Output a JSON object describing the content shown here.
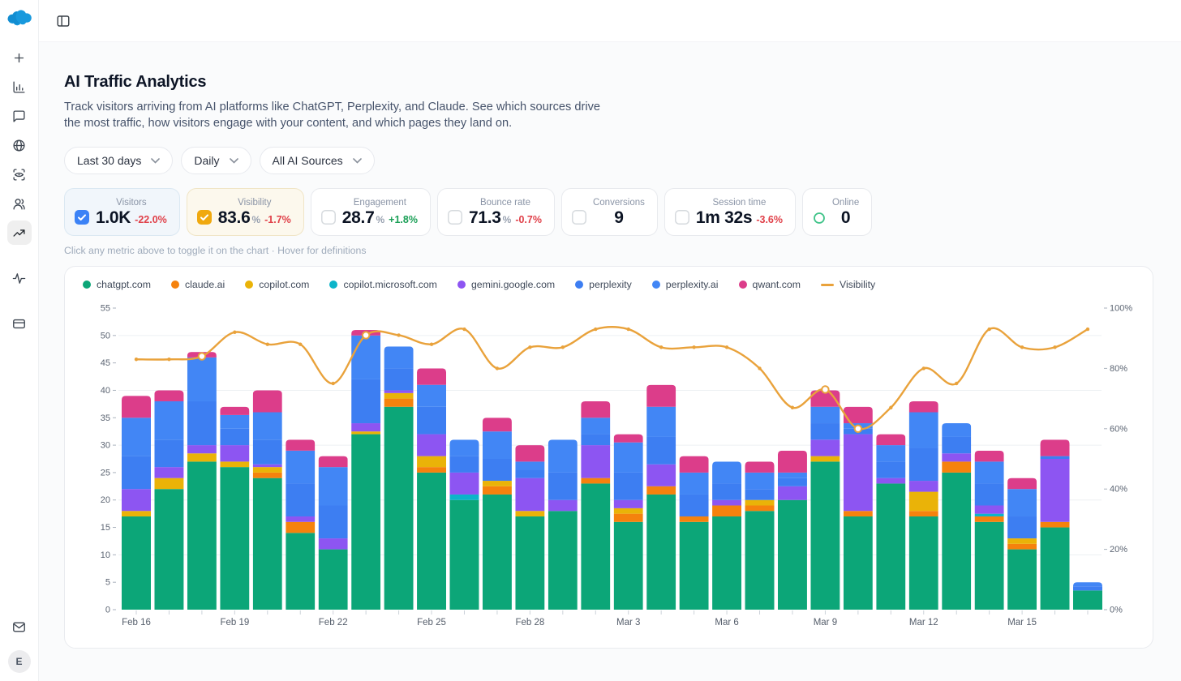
{
  "sidebar": {
    "active_item": "trending-up",
    "items": [
      {
        "icon": "plus"
      },
      {
        "icon": "bar-chart"
      },
      {
        "icon": "chat-bubble"
      },
      {
        "icon": "globe"
      },
      {
        "icon": "scan-eye"
      },
      {
        "icon": "users"
      },
      {
        "icon": "trending-up"
      },
      {
        "icon": "activity"
      },
      {
        "icon": "credit-card"
      },
      {
        "icon": "mail"
      }
    ],
    "avatar_letter": "E"
  },
  "page": {
    "title": "AI Traffic Analytics",
    "description": "Track visitors arriving from AI platforms like ChatGPT, Perplexity, and Claude. See which sources drive the most traffic, how visitors engage with your content, and which pages they land on.",
    "filters": [
      {
        "label": "Last 30 days"
      },
      {
        "label": "Daily"
      },
      {
        "label": "All AI Sources"
      }
    ],
    "metrics": [
      {
        "label": "Visitors",
        "value": "1.0K",
        "delta": "-22.0%",
        "state": "checked-blue"
      },
      {
        "label": "Visibility",
        "value": "83.6",
        "suffix": "%",
        "delta": "-1.7%",
        "state": "checked-amber"
      },
      {
        "label": "Engagement",
        "value": "28.7",
        "suffix": "%",
        "delta": "+1.8%",
        "state": "unchecked"
      },
      {
        "label": "Bounce rate",
        "value": "71.3",
        "suffix": "%",
        "delta": "-0.7%",
        "state": "unchecked"
      },
      {
        "label": "Conversions",
        "value": "9",
        "state": "unchecked"
      },
      {
        "label": "Session time",
        "value": "1m 32s",
        "delta": "-3.6%",
        "state": "unchecked"
      },
      {
        "label": "Online",
        "value": "0",
        "state": "online"
      }
    ],
    "hint": "Click any metric above to toggle it on the chart · Hover for definitions"
  },
  "colors": {
    "checkbox_blue": "#3b82f6",
    "checkbox_amber": "#f0a90f",
    "negative": "#e04049",
    "positive": "#1a9f56",
    "online_ring": "#3fc388"
  },
  "chart_data": {
    "type": "stacked-bar+line",
    "categories": [
      "Feb 16",
      "Feb 17",
      "Feb 18",
      "Feb 19",
      "Feb 20",
      "Feb 21",
      "Feb 22",
      "Feb 23",
      "Feb 24",
      "Feb 25",
      "Feb 26",
      "Feb 27",
      "Feb 28",
      "Mar 1",
      "Mar 2",
      "Mar 3",
      "Mar 4",
      "Mar 5",
      "Mar 6",
      "Mar 7",
      "Mar 8",
      "Mar 9",
      "Mar 10",
      "Mar 11",
      "Mar 12",
      "Mar 13",
      "Mar 14",
      "Mar 15",
      "Mar 16",
      "Mar 17"
    ],
    "x_label_every": 3,
    "series": [
      {
        "name": "chatgpt.com",
        "color": "#0ca678",
        "values": [
          17,
          22,
          27,
          26,
          24,
          14,
          11,
          32,
          37,
          25,
          20,
          21,
          17,
          18,
          23,
          16,
          21,
          16,
          17,
          18,
          20,
          27,
          17,
          23,
          17,
          25,
          16,
          11,
          15,
          3.5
        ]
      },
      {
        "name": "claude.ai",
        "color": "#f5820d",
        "values": [
          0,
          0,
          0,
          0,
          1,
          2,
          0,
          0,
          1.5,
          1,
          0,
          1.5,
          0,
          0,
          1,
          1.5,
          1.5,
          1,
          2,
          1,
          0,
          0,
          1,
          0,
          1,
          2,
          1,
          1,
          1,
          0
        ]
      },
      {
        "name": "copilot.com",
        "color": "#eab308",
        "values": [
          1,
          2,
          1.5,
          1,
          1,
          0,
          0,
          0.5,
          1,
          2,
          0,
          1,
          1,
          0,
          0,
          1,
          0,
          0,
          0,
          1,
          0,
          1,
          0,
          0,
          3.5,
          0,
          0,
          1,
          0,
          0
        ]
      },
      {
        "name": "copilot.microsoft.com",
        "color": "#0cb4c9",
        "values": [
          0,
          0,
          0,
          0,
          0,
          0,
          0,
          0,
          0,
          0,
          1,
          0,
          0,
          0,
          0,
          0,
          0,
          0,
          0,
          0,
          0,
          0,
          0,
          0,
          0,
          0,
          0.5,
          0,
          0,
          0
        ]
      },
      {
        "name": "gemini.google.com",
        "color": "#8d55f2",
        "values": [
          4,
          2,
          1.5,
          3,
          0.5,
          1,
          2,
          1.5,
          0.5,
          4,
          4,
          0,
          6,
          2,
          6,
          1.5,
          4,
          0,
          1,
          0,
          2.5,
          3,
          14,
          1,
          2,
          1.5,
          1.5,
          0,
          11.5,
          0
        ]
      },
      {
        "name": "perplexity",
        "color": "#3d7ef2",
        "values": [
          6,
          5,
          8,
          3,
          4.5,
          6,
          6,
          8,
          4,
          5,
          3,
          4,
          1.5,
          5,
          2,
          5,
          5,
          4,
          3,
          2,
          1.5,
          3,
          1,
          3,
          6,
          3,
          4,
          4,
          0.5,
          0.75
        ]
      },
      {
        "name": "perplexity.ai",
        "color": "#4286f5",
        "values": [
          7,
          7,
          8,
          2.5,
          5,
          6,
          7,
          8,
          4,
          4,
          3,
          5,
          1.5,
          6,
          3,
          5.5,
          5.5,
          4,
          4,
          3,
          1,
          3,
          1,
          3,
          6.5,
          2.5,
          4,
          5,
          0,
          0.75
        ]
      },
      {
        "name": "qwant.com",
        "color": "#dc3d8a",
        "values": [
          4,
          2,
          1,
          1.5,
          4,
          2,
          2,
          1,
          0,
          3,
          0,
          2.5,
          3,
          0,
          3,
          1.5,
          4,
          3,
          0,
          2,
          4,
          3,
          3,
          2,
          2,
          0,
          2,
          2,
          3,
          0
        ]
      }
    ],
    "line": {
      "name": "Visibility",
      "color": "#e9a23b",
      "unit": "%",
      "values": [
        83,
        83,
        84,
        92,
        88,
        88,
        75,
        91,
        91,
        88,
        93,
        80,
        87,
        87,
        93,
        93,
        87,
        87,
        87,
        80,
        67,
        73,
        60,
        67,
        80,
        75,
        93,
        87,
        87,
        93
      ],
      "highlight_indices": [
        2,
        7,
        21,
        22
      ]
    },
    "y_left": {
      "min": 0,
      "max": 55,
      "tick_step": 5,
      "grid_step": 10
    },
    "y_right": {
      "min": 0,
      "max": 100,
      "tick_step": 20,
      "suffix": "%"
    },
    "legend_position": "top-left",
    "grid": true
  }
}
